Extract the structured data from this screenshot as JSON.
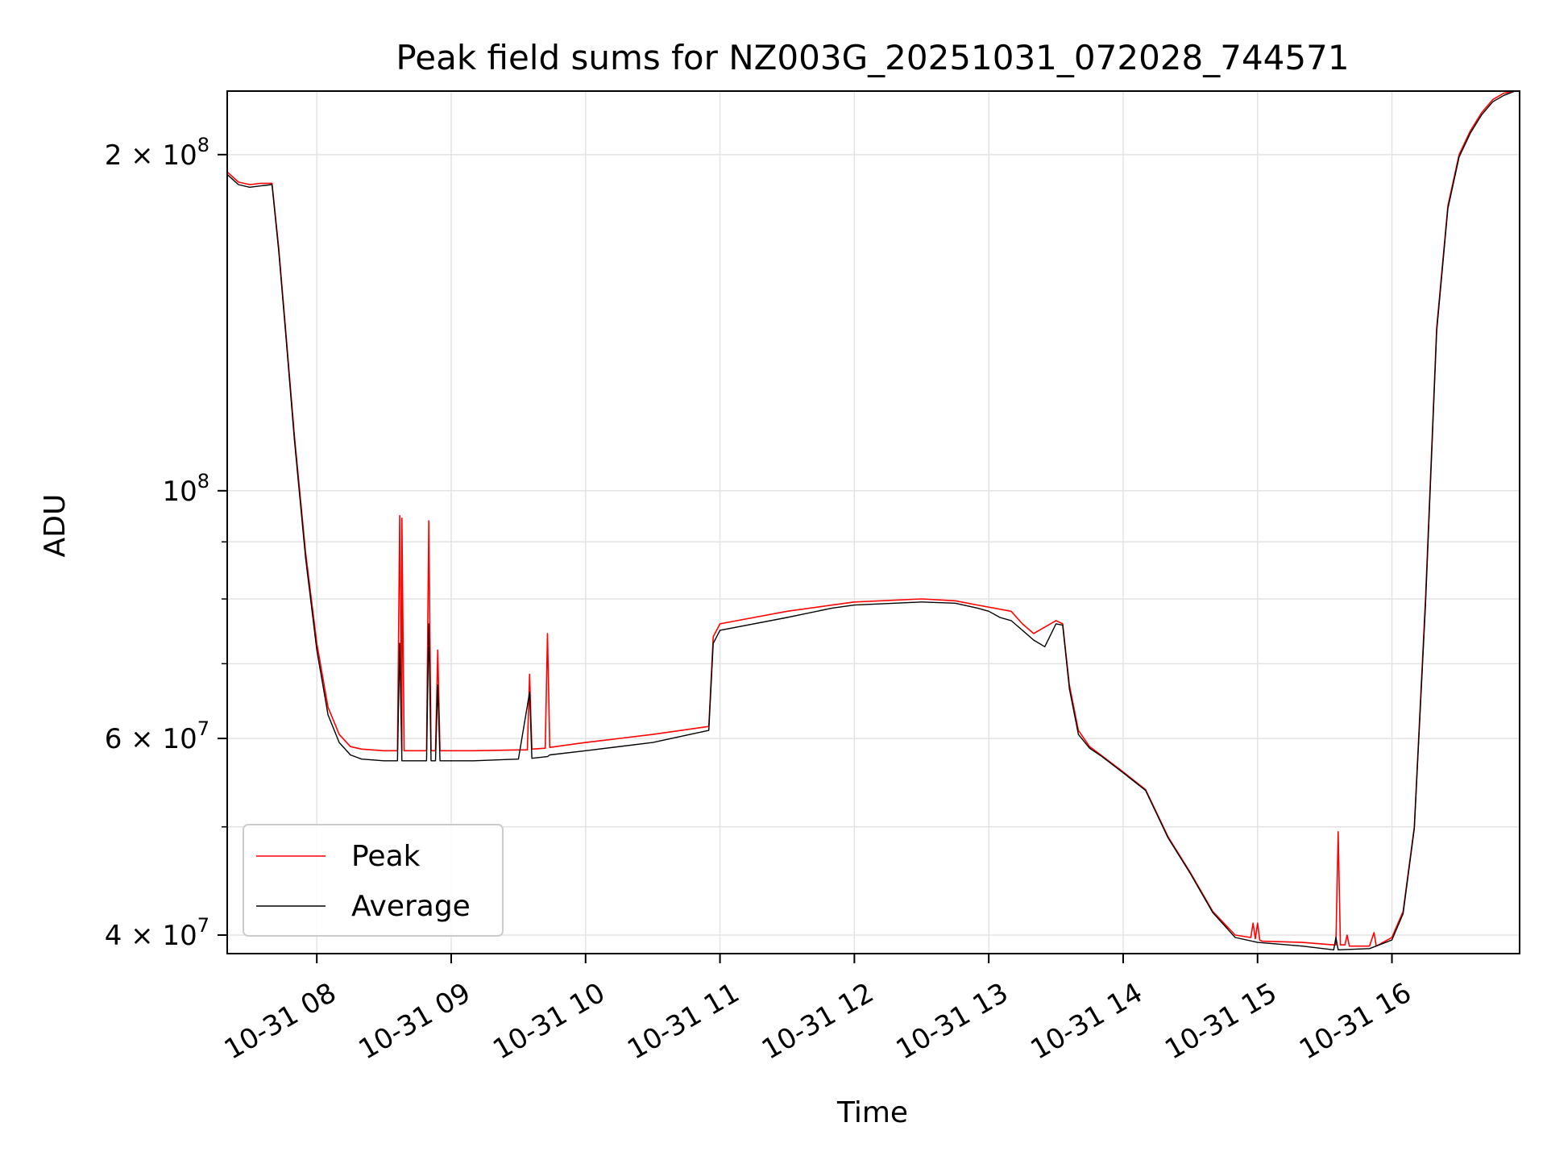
{
  "chart_data": {
    "type": "line",
    "title": "Peak field sums for NZ003G_20251031_072028_744571",
    "xlabel": "Time",
    "ylabel": "ADU",
    "yscale": "log",
    "grid": true,
    "legend_position": "lower-left",
    "xlim": [
      "2025-10-31 07:20",
      "2025-10-31 16:57"
    ],
    "ylim": [
      38500000,
      228000000
    ],
    "x_ticks": [
      {
        "t": "2025-10-31 08:00",
        "label": "10-31 08"
      },
      {
        "t": "2025-10-31 09:00",
        "label": "10-31 09"
      },
      {
        "t": "2025-10-31 10:00",
        "label": "10-31 10"
      },
      {
        "t": "2025-10-31 11:00",
        "label": "10-31 11"
      },
      {
        "t": "2025-10-31 12:00",
        "label": "10-31 12"
      },
      {
        "t": "2025-10-31 13:00",
        "label": "10-31 13"
      },
      {
        "t": "2025-10-31 14:00",
        "label": "10-31 14"
      },
      {
        "t": "2025-10-31 15:00",
        "label": "10-31 15"
      },
      {
        "t": "2025-10-31 16:00",
        "label": "10-31 16"
      }
    ],
    "y_ticks": [
      {
        "value": 40000000,
        "mant": "4",
        "exp": "7"
      },
      {
        "value": 60000000,
        "mant": "6",
        "exp": "7"
      },
      {
        "value": 100000000,
        "mant": "",
        "exp": "8"
      },
      {
        "value": 200000000,
        "mant": "2",
        "exp": "8"
      }
    ],
    "y_minor_ticks": [
      50000000,
      70000000,
      80000000,
      90000000
    ],
    "series": [
      {
        "name": "Peak",
        "color": "#ff0000",
        "x": [
          "2025-10-31 07:20",
          "2025-10-31 07:25",
          "2025-10-31 07:30",
          "2025-10-31 07:35",
          "2025-10-31 07:40",
          "2025-10-31 07:43",
          "2025-10-31 07:46",
          "2025-10-31 07:50",
          "2025-10-31 07:55",
          "2025-10-31 08:00",
          "2025-10-31 08:05",
          "2025-10-31 08:10",
          "2025-10-31 08:15",
          "2025-10-31 08:20",
          "2025-10-31 08:30",
          "2025-10-31 08:36",
          "2025-10-31 08:37",
          "2025-10-31 08:38",
          "2025-10-31 08:38",
          "2025-10-31 08:39",
          "2025-10-31 08:49",
          "2025-10-31 08:50",
          "2025-10-31 08:51",
          "2025-10-31 08:53",
          "2025-10-31 08:54",
          "2025-10-31 08:55",
          "2025-10-31 09:10",
          "2025-10-31 09:30",
          "2025-10-31 09:34",
          "2025-10-31 09:35",
          "2025-10-31 09:36",
          "2025-10-31 09:42",
          "2025-10-31 09:43",
          "2025-10-31 09:44",
          "2025-10-31 10:00",
          "2025-10-31 10:30",
          "2025-10-31 10:55",
          "2025-10-31 10:57",
          "2025-10-31 11:00",
          "2025-10-31 11:30",
          "2025-10-31 11:50",
          "2025-10-31 12:00",
          "2025-10-31 12:30",
          "2025-10-31 12:45",
          "2025-10-31 12:55",
          "2025-10-31 13:10",
          "2025-10-31 13:15",
          "2025-10-31 13:20",
          "2025-10-31 13:25",
          "2025-10-31 13:30",
          "2025-10-31 13:33",
          "2025-10-31 13:36",
          "2025-10-31 13:40",
          "2025-10-31 13:45",
          "2025-10-31 13:50",
          "2025-10-31 14:00",
          "2025-10-31 14:10",
          "2025-10-31 14:20",
          "2025-10-31 14:30",
          "2025-10-31 14:40",
          "2025-10-31 14:50",
          "2025-10-31 14:57",
          "2025-10-31 14:58",
          "2025-10-31 14:59",
          "2025-10-31 15:00",
          "2025-10-31 15:01",
          "2025-10-31 15:02",
          "2025-10-31 15:20",
          "2025-10-31 15:34",
          "2025-10-31 15:35",
          "2025-10-31 15:36",
          "2025-10-31 15:37",
          "2025-10-31 15:39",
          "2025-10-31 15:40",
          "2025-10-31 15:41",
          "2025-10-31 15:50",
          "2025-10-31 15:52",
          "2025-10-31 15:53",
          "2025-10-31 15:54",
          "2025-10-31 16:00",
          "2025-10-31 16:05",
          "2025-10-31 16:10",
          "2025-10-31 16:15",
          "2025-10-31 16:20",
          "2025-10-31 16:25",
          "2025-10-31 16:30",
          "2025-10-31 16:35",
          "2025-10-31 16:40",
          "2025-10-31 16:45",
          "2025-10-31 16:50",
          "2025-10-31 16:55",
          "2025-10-31 16:57"
        ],
        "y": [
          193000000,
          189000000,
          188000000,
          188500000,
          188500000,
          165000000,
          140000000,
          112000000,
          88000000,
          73000000,
          64000000,
          60500000,
          59000000,
          58700000,
          58500000,
          58500000,
          95000000,
          58500000,
          94500000,
          58500000,
          58500000,
          94000000,
          58500000,
          58500000,
          72000000,
          58500000,
          58500000,
          58600000,
          58600000,
          68500000,
          58700000,
          58800000,
          74500000,
          58900000,
          59500000,
          60500000,
          61500000,
          74000000,
          76000000,
          78000000,
          79000000,
          79500000,
          80000000,
          79700000,
          79000000,
          78000000,
          76000000,
          74500000,
          75500000,
          76500000,
          76000000,
          67000000,
          61000000,
          59000000,
          58000000,
          56000000,
          54000000,
          49000000,
          45500000,
          42000000,
          40000000,
          39800000,
          41000000,
          39700000,
          41000000,
          39600000,
          39500000,
          39400000,
          39200000,
          39200000,
          49500000,
          39200000,
          39200000,
          40000000,
          39100000,
          39100000,
          40200000,
          39100000,
          39200000,
          39800000,
          42000000,
          50000000,
          80000000,
          140000000,
          180000000,
          200000000,
          210000000,
          218000000,
          224000000,
          227000000,
          228000000,
          228000000
        ]
      },
      {
        "name": "Average",
        "color": "#000000",
        "x": [
          "2025-10-31 07:20",
          "2025-10-31 07:25",
          "2025-10-31 07:30",
          "2025-10-31 07:35",
          "2025-10-31 07:40",
          "2025-10-31 07:43",
          "2025-10-31 07:46",
          "2025-10-31 07:50",
          "2025-10-31 07:55",
          "2025-10-31 08:00",
          "2025-10-31 08:05",
          "2025-10-31 08:10",
          "2025-10-31 08:15",
          "2025-10-31 08:20",
          "2025-10-31 08:30",
          "2025-10-31 08:36",
          "2025-10-31 08:37",
          "2025-10-31 08:38",
          "2025-10-31 08:49",
          "2025-10-31 08:50",
          "2025-10-31 08:51",
          "2025-10-31 08:53",
          "2025-10-31 08:54",
          "2025-10-31 08:55",
          "2025-10-31 09:10",
          "2025-10-31 09:30",
          "2025-10-31 09:35",
          "2025-10-31 09:36",
          "2025-10-31 09:43",
          "2025-10-31 09:44",
          "2025-10-31 10:00",
          "2025-10-31 10:30",
          "2025-10-31 10:55",
          "2025-10-31 10:57",
          "2025-10-31 11:00",
          "2025-10-31 11:30",
          "2025-10-31 11:50",
          "2025-10-31 12:00",
          "2025-10-31 12:30",
          "2025-10-31 12:45",
          "2025-10-31 12:55",
          "2025-10-31 13:00",
          "2025-10-31 13:05",
          "2025-10-31 13:10",
          "2025-10-31 13:15",
          "2025-10-31 13:20",
          "2025-10-31 13:25",
          "2025-10-31 13:30",
          "2025-10-31 13:33",
          "2025-10-31 13:36",
          "2025-10-31 13:40",
          "2025-10-31 13:45",
          "2025-10-31 13:50",
          "2025-10-31 14:00",
          "2025-10-31 14:10",
          "2025-10-31 14:20",
          "2025-10-31 14:30",
          "2025-10-31 14:40",
          "2025-10-31 14:50",
          "2025-10-31 15:00",
          "2025-10-31 15:20",
          "2025-10-31 15:34",
          "2025-10-31 15:35",
          "2025-10-31 15:36",
          "2025-10-31 15:50",
          "2025-10-31 16:00",
          "2025-10-31 16:05",
          "2025-10-31 16:10",
          "2025-10-31 16:15",
          "2025-10-31 16:20",
          "2025-10-31 16:25",
          "2025-10-31 16:30",
          "2025-10-31 16:35",
          "2025-10-31 16:40",
          "2025-10-31 16:45",
          "2025-10-31 16:50",
          "2025-10-31 16:55",
          "2025-10-31 16:57"
        ],
        "y": [
          192000000,
          188000000,
          187000000,
          187500000,
          188000000,
          164000000,
          139000000,
          111000000,
          87000000,
          72000000,
          63000000,
          59500000,
          58000000,
          57500000,
          57300000,
          57300000,
          73000000,
          57300000,
          57300000,
          76000000,
          57300000,
          57300000,
          67000000,
          57300000,
          57300000,
          57500000,
          66000000,
          57600000,
          57800000,
          58000000,
          58500000,
          59500000,
          61000000,
          73000000,
          75000000,
          77000000,
          78500000,
          79000000,
          79500000,
          79300000,
          78500000,
          78000000,
          77000000,
          76500000,
          75000000,
          73500000,
          72500000,
          76000000,
          75800000,
          66500000,
          60500000,
          58800000,
          57900000,
          55900000,
          53900000,
          48900000,
          45400000,
          41900000,
          39800000,
          39400000,
          39100000,
          38800000,
          39800000,
          38800000,
          38900000,
          39600000,
          41800000,
          49800000,
          79000000,
          139000000,
          179000000,
          199000000,
          209000000,
          217000000,
          223000000,
          226000000,
          228000000,
          228000000
        ]
      }
    ]
  }
}
